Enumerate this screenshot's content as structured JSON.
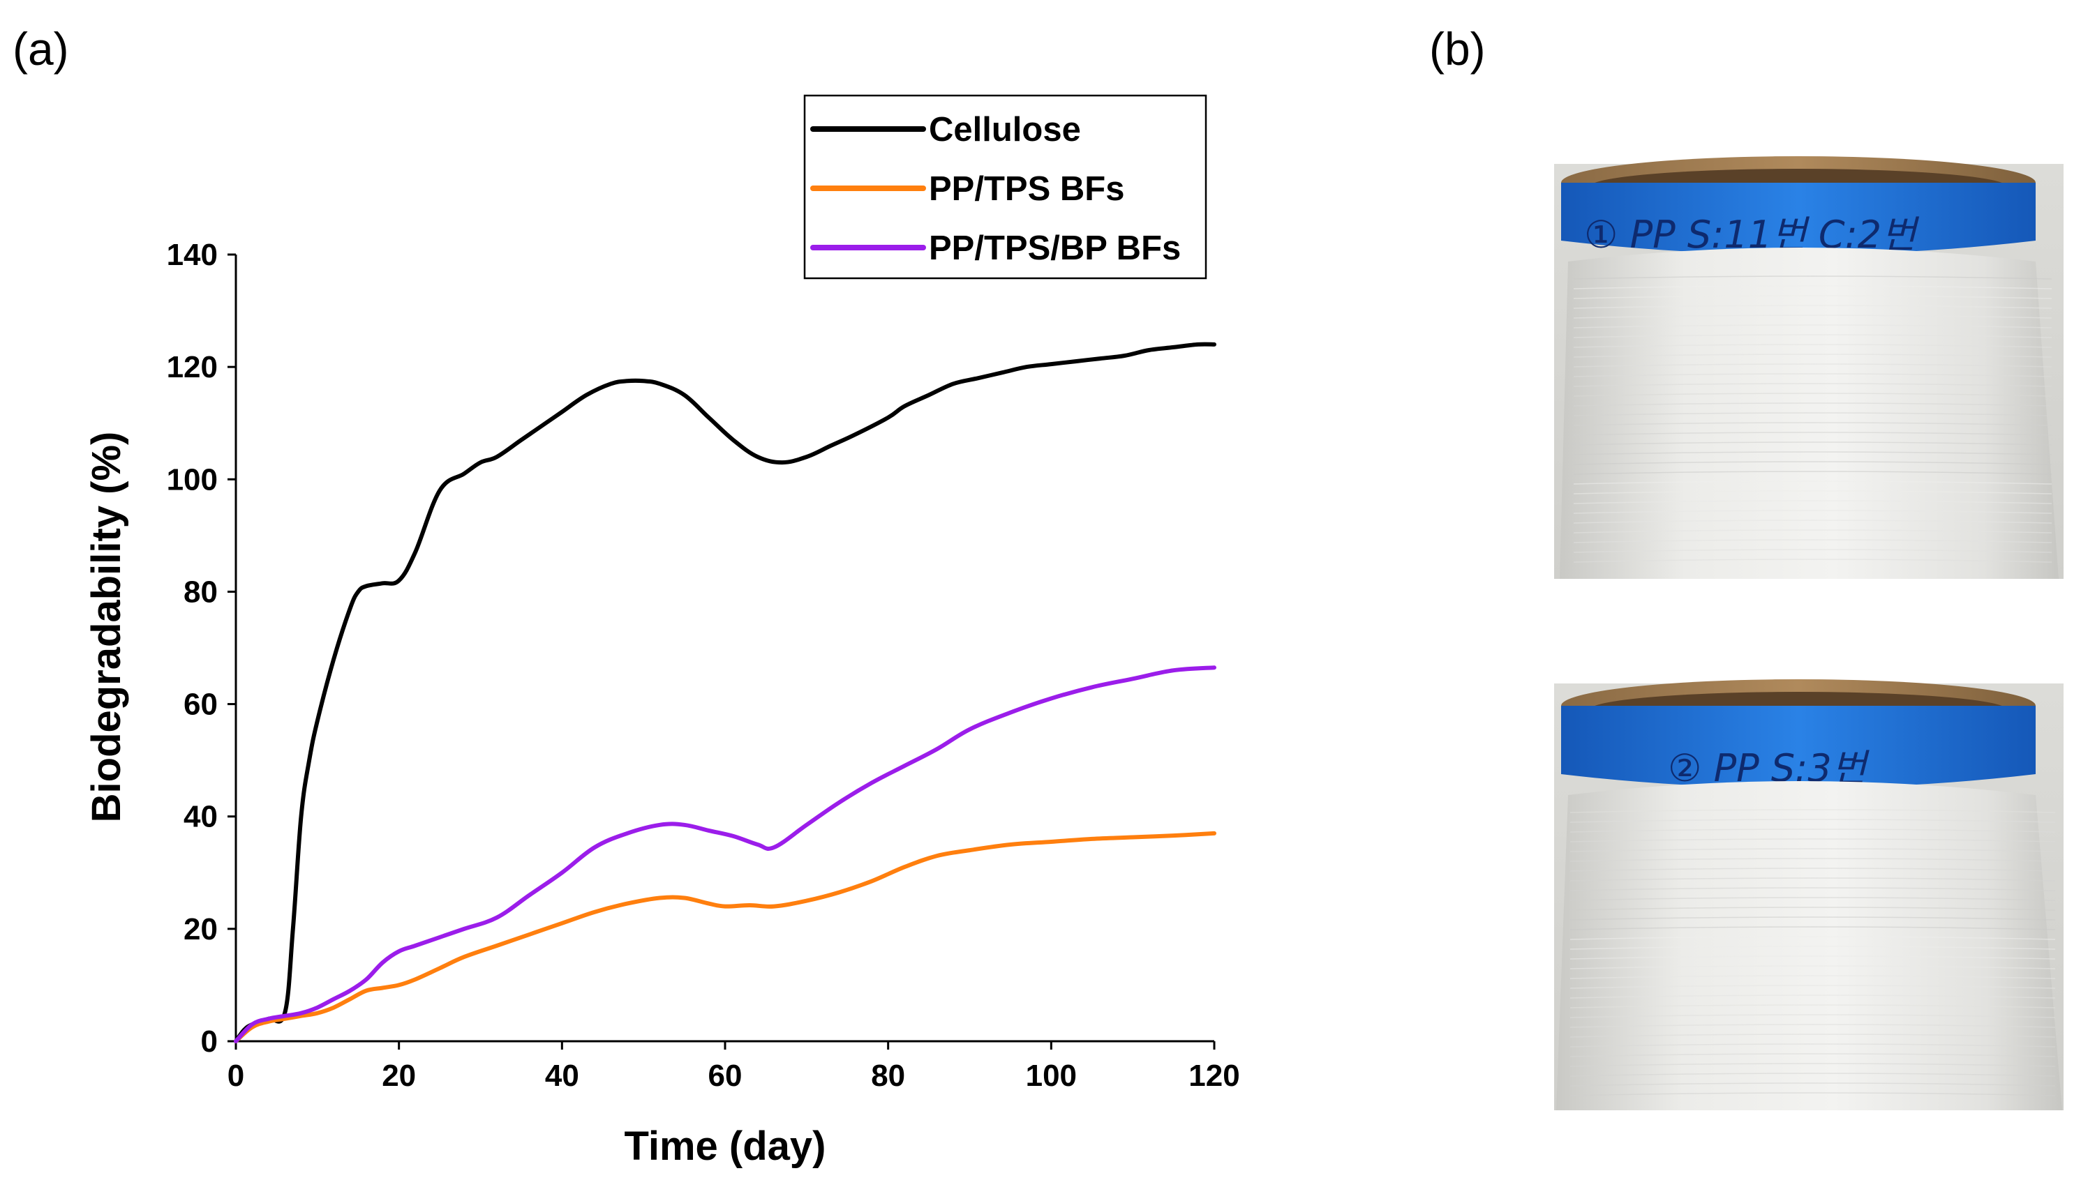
{
  "panels": {
    "a_label": "(a)",
    "b_label": "(b)"
  },
  "chart_data": {
    "type": "line",
    "title": "",
    "xlabel": "Time (day)",
    "ylabel": "Biodegradability (%)",
    "xlim": [
      0,
      120
    ],
    "ylim": [
      0,
      140
    ],
    "xticks": [
      0,
      20,
      40,
      60,
      80,
      100,
      120
    ],
    "yticks": [
      0,
      20,
      40,
      60,
      80,
      100,
      120,
      140
    ],
    "grid": false,
    "legend_position": "top-right",
    "series": [
      {
        "name": "Cellulose",
        "color": "#000000",
        "x": [
          0,
          1,
          2,
          4,
          6,
          7,
          8,
          9,
          10,
          12,
          14,
          15,
          16,
          18,
          20,
          22,
          25,
          28,
          30,
          32,
          35,
          38,
          40,
          43,
          46,
          48,
          50,
          52,
          55,
          58,
          61,
          64,
          67,
          70,
          73,
          76,
          80,
          82,
          85,
          88,
          91,
          94,
          97,
          100,
          103,
          106,
          109,
          112,
          115,
          118,
          120
        ],
        "y": [
          0,
          2,
          3,
          4,
          5,
          20,
          40,
          50,
          57,
          68,
          77,
          80,
          81,
          81.5,
          82,
          87,
          98,
          101,
          103,
          104,
          107,
          110,
          112,
          115,
          117,
          117.5,
          117.5,
          117,
          115,
          111,
          107,
          104,
          103,
          104,
          106,
          108,
          111,
          113,
          115,
          117,
          118,
          119,
          120,
          120.5,
          121,
          121.5,
          122,
          123,
          123.5,
          124,
          124
        ]
      },
      {
        "name": "PP/TPS BFs",
        "color": "#ff7f0e",
        "x": [
          0,
          2,
          4,
          6,
          8,
          10,
          12,
          14,
          16,
          18,
          20,
          22,
          25,
          28,
          32,
          36,
          40,
          44,
          48,
          52,
          55,
          58,
          60,
          63,
          66,
          70,
          74,
          78,
          82,
          86,
          90,
          95,
          100,
          105,
          110,
          115,
          120
        ],
        "y": [
          0,
          2.5,
          3.5,
          4,
          4.5,
          5,
          6,
          7.5,
          9,
          9.5,
          10,
          11,
          13,
          15,
          17,
          19,
          21,
          23,
          24.5,
          25.5,
          25.5,
          24.5,
          24,
          24.2,
          24,
          25,
          26.5,
          28.5,
          31,
          33,
          34,
          35,
          35.5,
          36,
          36.3,
          36.6,
          37
        ]
      },
      {
        "name": "PP/TPS/BP BFs",
        "color": "#9b1dea",
        "x": [
          0,
          2,
          4,
          6,
          8,
          10,
          12,
          14,
          16,
          18,
          20,
          22,
          25,
          28,
          32,
          36,
          40,
          44,
          48,
          52,
          55,
          58,
          61,
          64,
          66,
          70,
          74,
          78,
          82,
          86,
          90,
          95,
          100,
          105,
          110,
          115,
          120
        ],
        "y": [
          0,
          3,
          4,
          4.5,
          5,
          6,
          7.5,
          9,
          11,
          14,
          16,
          17,
          18.5,
          20,
          22,
          26,
          30,
          34.5,
          37,
          38.5,
          38.5,
          37.5,
          36.5,
          35,
          34.5,
          38.5,
          42.5,
          46,
          49,
          52,
          55.5,
          58.5,
          61,
          63,
          64.5,
          66,
          66.5
        ]
      }
    ]
  },
  "photos": {
    "top_spool_text": "① PP   S:11번   C:2번",
    "bottom_spool_text": "② PP   S:3번",
    "tape_color": "#1d6fd6",
    "fiber_color": "#e9e9e6"
  }
}
